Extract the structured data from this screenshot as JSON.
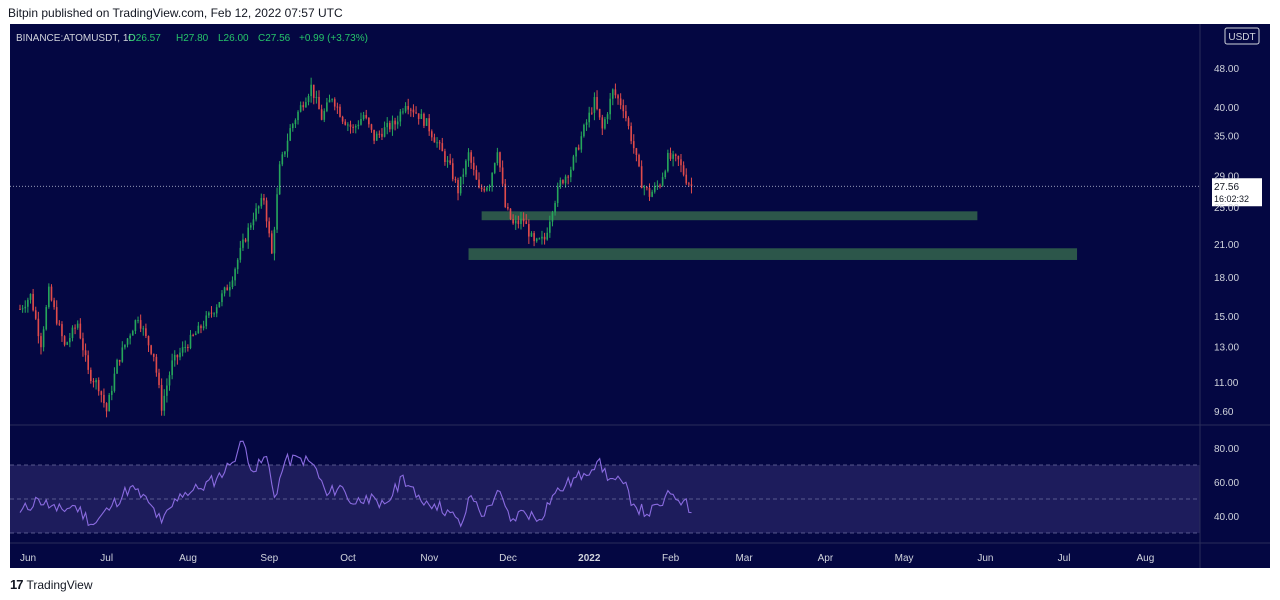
{
  "header": {
    "published": "Bitpin published on TradingView.com, Feb 12, 2022 07:57 UTC"
  },
  "legend": {
    "symbol": "BINANCE:ATOMUSDT, 1D",
    "open": "O26.57",
    "high": "H27.80",
    "low": "L26.00",
    "close": "C27.56",
    "change": "+0.99 (+3.73%)"
  },
  "currency": "USDT",
  "footer": {
    "brand": "TradingView"
  },
  "colors": {
    "background": "#040742",
    "up": "#26a65b",
    "down": "#e04b4b",
    "zone": "#2e5b4b",
    "rsi_line": "#8a6be0",
    "rsi_band": "#1d1c5c"
  },
  "chart_data": {
    "type": "candlestick",
    "price_scale": "log",
    "y_ticks": [
      "48.00",
      "40.00",
      "35.00",
      "29.00",
      "25.00",
      "21.00",
      "18.00",
      "15.00",
      "13.00",
      "11.00",
      "9.60"
    ],
    "x_ticks": [
      "Jun",
      "Jul",
      "Aug",
      "Sep",
      "Oct",
      "Nov",
      "Dec",
      "2022",
      "Feb",
      "Mar",
      "Apr",
      "May",
      "Jun",
      "Jul",
      "Aug"
    ],
    "last_price": {
      "value": "27.56",
      "countdown": "16:02:32"
    },
    "price_path": [
      [
        "2021-06-01",
        15.5
      ],
      [
        "2021-06-05",
        16.5
      ],
      [
        "2021-06-09",
        13.2
      ],
      [
        "2021-06-12",
        16.8
      ],
      [
        "2021-06-18",
        13.0
      ],
      [
        "2021-06-23",
        14.5
      ],
      [
        "2021-06-27",
        11.5
      ],
      [
        "2021-07-01",
        10.8
      ],
      [
        "2021-07-04",
        9.6
      ],
      [
        "2021-07-08",
        12.0
      ],
      [
        "2021-07-12",
        13.5
      ],
      [
        "2021-07-16",
        15.0
      ],
      [
        "2021-07-19",
        13.5
      ],
      [
        "2021-07-22",
        12.5
      ],
      [
        "2021-07-25",
        9.8
      ],
      [
        "2021-07-29",
        12.0
      ],
      [
        "2021-08-03",
        13.0
      ],
      [
        "2021-08-08",
        14.0
      ],
      [
        "2021-08-14",
        15.5
      ],
      [
        "2021-08-20",
        17.5
      ],
      [
        "2021-08-25",
        21.0
      ],
      [
        "2021-08-29",
        24.0
      ],
      [
        "2021-09-02",
        26.0
      ],
      [
        "2021-09-05",
        20.0
      ],
      [
        "2021-09-08",
        30.0
      ],
      [
        "2021-09-12",
        36.0
      ],
      [
        "2021-09-16",
        40.0
      ],
      [
        "2021-09-20",
        44.0
      ],
      [
        "2021-09-24",
        38.0
      ],
      [
        "2021-09-28",
        42.0
      ],
      [
        "2021-10-02",
        38.0
      ],
      [
        "2021-10-06",
        36.0
      ],
      [
        "2021-10-10",
        38.5
      ],
      [
        "2021-10-14",
        34.5
      ],
      [
        "2021-10-18",
        36.0
      ],
      [
        "2021-10-22",
        37.0
      ],
      [
        "2021-10-26",
        41.0
      ],
      [
        "2021-10-30",
        39.0
      ],
      [
        "2021-11-03",
        37.0
      ],
      [
        "2021-11-08",
        33.0
      ],
      [
        "2021-11-12",
        30.0
      ],
      [
        "2021-11-15",
        27.0
      ],
      [
        "2021-11-19",
        32.0
      ],
      [
        "2021-11-23",
        27.0
      ],
      [
        "2021-11-27",
        28.0
      ],
      [
        "2021-11-30",
        33.0
      ],
      [
        "2021-12-03",
        25.0
      ],
      [
        "2021-12-06",
        23.0
      ],
      [
        "2021-12-10",
        23.5
      ],
      [
        "2021-12-14",
        21.0
      ],
      [
        "2021-12-18",
        21.5
      ],
      [
        "2021-12-21",
        25.0
      ],
      [
        "2021-12-24",
        28.0
      ],
      [
        "2021-12-28",
        30.0
      ],
      [
        "2022-01-02",
        36.0
      ],
      [
        "2022-01-06",
        41.0
      ],
      [
        "2022-01-09",
        36.0
      ],
      [
        "2022-01-13",
        43.0
      ],
      [
        "2022-01-17",
        40.0
      ],
      [
        "2022-01-21",
        33.0
      ],
      [
        "2022-01-24",
        28.0
      ],
      [
        "2022-01-27",
        26.5
      ],
      [
        "2022-01-31",
        28.0
      ],
      [
        "2022-02-03",
        31.5
      ],
      [
        "2022-02-07",
        31.0
      ],
      [
        "2022-02-10",
        28.5
      ],
      [
        "2022-02-12",
        27.56
      ]
    ],
    "support_zones": [
      {
        "low": 23.5,
        "high": 24.5,
        "from": "2021-11-24",
        "to": "2022-06-01"
      },
      {
        "low": 19.5,
        "high": 20.6,
        "from": "2021-11-19",
        "to": "2022-07-09"
      }
    ],
    "rsi": {
      "y_ticks": [
        "80.00",
        "60.00",
        "40.00"
      ],
      "upper": 70,
      "middle": 50,
      "lower": 30,
      "path": [
        [
          "2021-06-01",
          42
        ],
        [
          "2021-06-08",
          50
        ],
        [
          "2021-06-15",
          43
        ],
        [
          "2021-06-22",
          46
        ],
        [
          "2021-06-29",
          35
        ],
        [
          "2021-07-06",
          46
        ],
        [
          "2021-07-13",
          57
        ],
        [
          "2021-07-20",
          48
        ],
        [
          "2021-07-25",
          36
        ],
        [
          "2021-08-01",
          53
        ],
        [
          "2021-08-08",
          56
        ],
        [
          "2021-08-15",
          62
        ],
        [
          "2021-08-20",
          70
        ],
        [
          "2021-08-25",
          84
        ],
        [
          "2021-08-29",
          66
        ],
        [
          "2021-09-03",
          75
        ],
        [
          "2021-09-06",
          51
        ],
        [
          "2021-09-10",
          72
        ],
        [
          "2021-09-16",
          74
        ],
        [
          "2021-09-21",
          70
        ],
        [
          "2021-09-26",
          52
        ],
        [
          "2021-10-01",
          58
        ],
        [
          "2021-10-06",
          47
        ],
        [
          "2021-10-11",
          52
        ],
        [
          "2021-10-16",
          45
        ],
        [
          "2021-10-21",
          52
        ],
        [
          "2021-10-25",
          64
        ],
        [
          "2021-10-30",
          51
        ],
        [
          "2021-11-06",
          47
        ],
        [
          "2021-11-12",
          42
        ],
        [
          "2021-11-16",
          34
        ],
        [
          "2021-11-20",
          52
        ],
        [
          "2021-11-25",
          40
        ],
        [
          "2021-11-30",
          55
        ],
        [
          "2021-12-05",
          37
        ],
        [
          "2021-12-10",
          43
        ],
        [
          "2021-12-16",
          38
        ],
        [
          "2021-12-21",
          52
        ],
        [
          "2021-12-26",
          58
        ],
        [
          "2022-01-02",
          65
        ],
        [
          "2022-01-07",
          72
        ],
        [
          "2022-01-12",
          62
        ],
        [
          "2022-01-17",
          59
        ],
        [
          "2022-01-21",
          47
        ],
        [
          "2022-01-26",
          41
        ],
        [
          "2022-01-31",
          46
        ],
        [
          "2022-02-04",
          53
        ],
        [
          "2022-02-09",
          49
        ],
        [
          "2022-02-12",
          42
        ]
      ]
    }
  }
}
